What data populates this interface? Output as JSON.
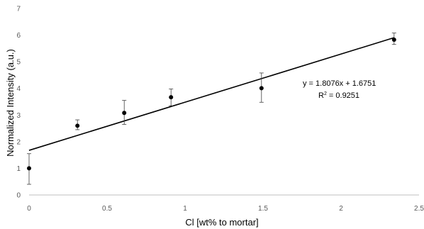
{
  "chart_data": {
    "type": "scatter",
    "title": "",
    "xlabel": "Cl [wt% to mortar]",
    "ylabel": "Normalized Intensity (a.u.)",
    "xlim": [
      0,
      2.5
    ],
    "ylim": [
      0,
      7
    ],
    "xticks": [
      0,
      0.5,
      1,
      1.5,
      2,
      2.5
    ],
    "xtick_labels": [
      "0",
      "0.5",
      "1",
      "1.5",
      "2",
      "2.5"
    ],
    "yticks": [
      0,
      1,
      2,
      3,
      4,
      5,
      6,
      7
    ],
    "ytick_labels": [
      "0",
      "1",
      "2",
      "3",
      "4",
      "5",
      "6",
      "7"
    ],
    "grid": false,
    "legend": "none",
    "marker_color": "#000000",
    "series": [
      {
        "points": [
          {
            "x": 0.0,
            "y": 1.0,
            "err_low": 0.4,
            "err_high": 1.55
          },
          {
            "x": 0.31,
            "y": 2.6,
            "err_low": 2.45,
            "err_high": 2.82
          },
          {
            "x": 0.61,
            "y": 3.08,
            "err_low": 2.65,
            "err_high": 3.55
          },
          {
            "x": 0.91,
            "y": 3.67,
            "err_low": 3.35,
            "err_high": 3.98
          },
          {
            "x": 1.49,
            "y": 4.01,
            "err_low": 3.48,
            "err_high": 4.58
          },
          {
            "x": 2.34,
            "y": 5.83,
            "err_low": 5.65,
            "err_high": 6.08
          }
        ]
      }
    ],
    "trendline": {
      "slope": 1.8076,
      "intercept": 1.6751,
      "x_range": [
        0,
        2.34
      ],
      "equation_label": "y = 1.8076x + 1.6751",
      "r2_prefix": "R",
      "r2_sup": "2",
      "r2_value": " = 0.9251"
    }
  }
}
